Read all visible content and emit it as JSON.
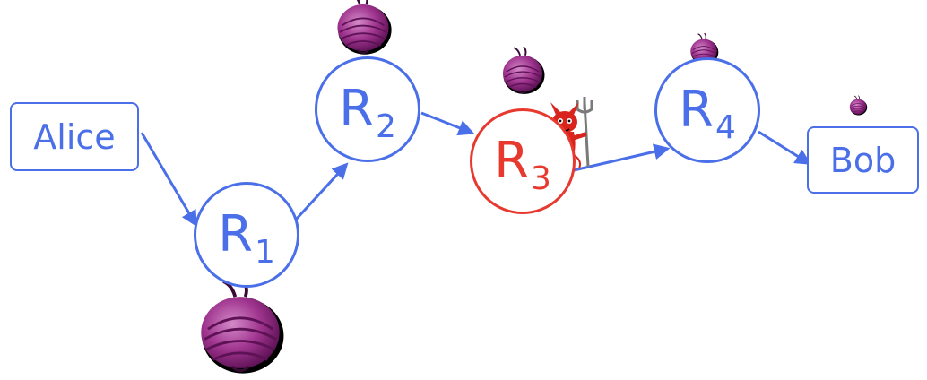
{
  "nodes": {
    "alice": "Alice",
    "bob": "Bob",
    "relays": [
      {
        "letter": "R",
        "sub": "1"
      },
      {
        "letter": "R",
        "sub": "2"
      },
      {
        "letter": "R",
        "sub": "3"
      },
      {
        "letter": "R",
        "sub": "4"
      }
    ]
  },
  "colors": {
    "node": "#4a6fe8",
    "compromised": "#e8392f",
    "onion": "#a0358f",
    "devil": "#d8241c"
  },
  "icons": [
    "onion-icon",
    "devil-icon"
  ]
}
